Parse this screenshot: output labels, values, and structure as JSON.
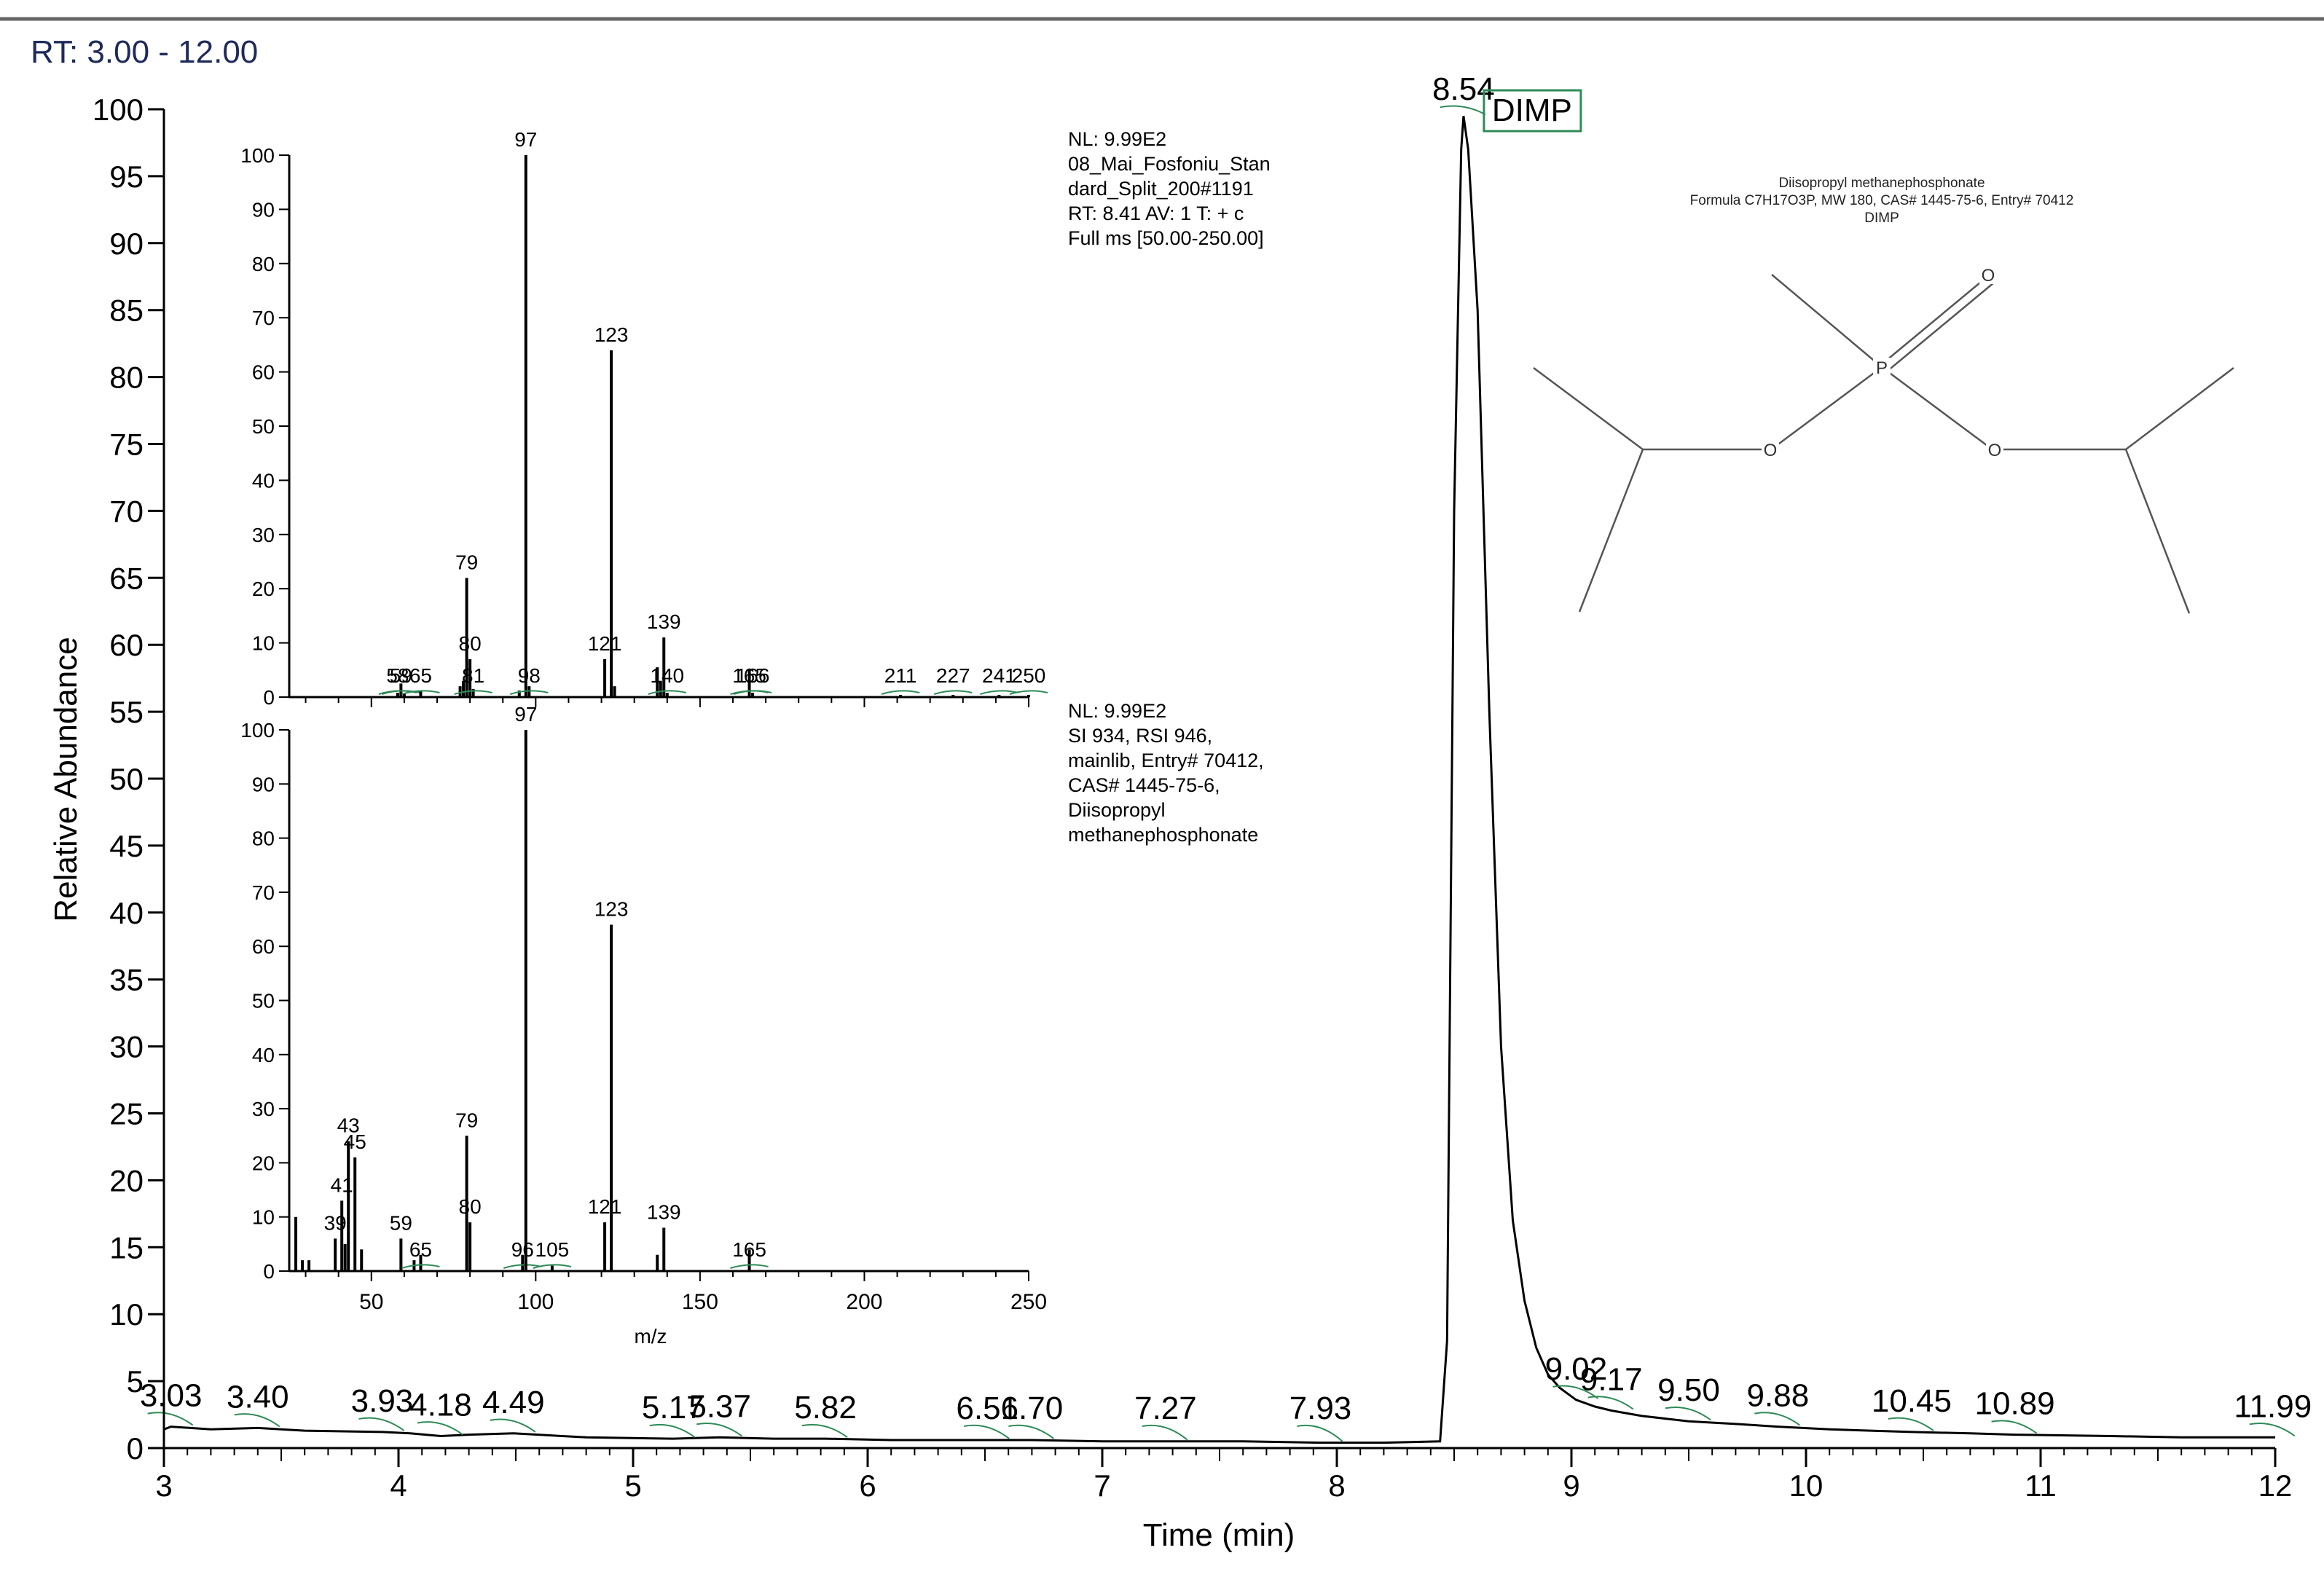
{
  "chart_data": [
    {
      "type": "line",
      "header": "RT: 3.00 - 12.00",
      "xlabel": "Time (min)",
      "ylabel": "Relative Abundance",
      "xlim": [
        3,
        12
      ],
      "ylim": [
        0,
        100
      ],
      "x_ticks": [
        "3",
        "4",
        "5",
        "6",
        "7",
        "8",
        "9",
        "10",
        "11",
        "12"
      ],
      "y_ticks": [
        "0",
        "5",
        "10",
        "15",
        "20",
        "25",
        "30",
        "35",
        "40",
        "45",
        "50",
        "55",
        "60",
        "65",
        "70",
        "75",
        "80",
        "85",
        "90",
        "95",
        "100"
      ],
      "series": [
        {
          "x": [
            3.0,
            3.03,
            3.2,
            3.4,
            3.6,
            3.93,
            4.05,
            4.18,
            4.3,
            4.49,
            4.8,
            5.17,
            5.37,
            5.6,
            5.82,
            6.1,
            6.51,
            6.7,
            7.0,
            7.27,
            7.6,
            7.93,
            8.2,
            8.44,
            8.47,
            8.5,
            8.53,
            8.54,
            8.56,
            8.6,
            8.65,
            8.7,
            8.75,
            8.8,
            8.85,
            8.9,
            8.95,
            9.02,
            9.1,
            9.17,
            9.3,
            9.5,
            9.7,
            9.88,
            10.1,
            10.45,
            10.7,
            10.89,
            11.3,
            11.6,
            11.99,
            12.0
          ],
          "y": [
            1.4,
            1.6,
            1.4,
            1.5,
            1.3,
            1.2,
            1.1,
            0.9,
            1.0,
            1.1,
            0.8,
            0.7,
            0.8,
            0.7,
            0.7,
            0.6,
            0.6,
            0.6,
            0.5,
            0.5,
            0.5,
            0.4,
            0.4,
            0.5,
            8.0,
            70.0,
            97.0,
            99.5,
            97.0,
            85.0,
            55.0,
            30.0,
            17.0,
            11.0,
            7.5,
            5.5,
            4.5,
            3.6,
            3.1,
            2.8,
            2.4,
            2.0,
            1.8,
            1.6,
            1.4,
            1.2,
            1.1,
            1.0,
            0.9,
            0.8,
            0.8,
            0.8
          ]
        }
      ],
      "peak_labels": [
        {
          "x": 3.03,
          "y": 1.6,
          "label": "3.03"
        },
        {
          "x": 3.4,
          "y": 1.5,
          "label": "3.40"
        },
        {
          "x": 3.93,
          "y": 1.2,
          "label": "3.93"
        },
        {
          "x": 4.18,
          "y": 0.9,
          "label": "4.18"
        },
        {
          "x": 4.49,
          "y": 1.1,
          "label": "4.49"
        },
        {
          "x": 5.17,
          "y": 0.7,
          "label": "5.17"
        },
        {
          "x": 5.37,
          "y": 0.8,
          "label": "5.37"
        },
        {
          "x": 5.82,
          "y": 0.7,
          "label": "5.82"
        },
        {
          "x": 6.51,
          "y": 0.6,
          "label": "6.51"
        },
        {
          "x": 6.7,
          "y": 0.6,
          "label": "6.70"
        },
        {
          "x": 7.27,
          "y": 0.5,
          "label": "7.27"
        },
        {
          "x": 7.93,
          "y": 0.4,
          "label": "7.93"
        },
        {
          "x": 8.54,
          "y": 99.5,
          "label": "8.54"
        },
        {
          "x": 9.02,
          "y": 3.6,
          "label": "9.02"
        },
        {
          "x": 9.17,
          "y": 2.8,
          "label": "9.17"
        },
        {
          "x": 9.5,
          "y": 2.0,
          "label": "9.50"
        },
        {
          "x": 9.88,
          "y": 1.6,
          "label": "9.88"
        },
        {
          "x": 10.45,
          "y": 1.2,
          "label": "10.45"
        },
        {
          "x": 10.89,
          "y": 1.0,
          "label": "10.89"
        },
        {
          "x": 11.99,
          "y": 0.8,
          "label": "11.99"
        }
      ],
      "compound_box": "DIMP",
      "compound_box_peak_x": 8.54
    },
    {
      "type": "bar",
      "name": "measured spectrum",
      "xlim": [
        25,
        250
      ],
      "ylim": [
        0,
        100
      ],
      "y_ticks": [
        "0",
        "10",
        "20",
        "30",
        "40",
        "50",
        "60",
        "70",
        "80",
        "90",
        "100"
      ],
      "x_ticks": [],
      "info": [
        "NL: 9.99E2",
        "08_Mai_Fosfoniu_Stan",
        "dard_Split_200#1191",
        "RT: 8.41  AV: 1 T: + c",
        "Full ms [50.00-250.00]"
      ],
      "peaks": [
        {
          "mz": 58,
          "value": 0.8,
          "label": "58"
        },
        {
          "mz": 59,
          "value": 2.5,
          "label": "59"
        },
        {
          "mz": 60,
          "value": 0.6,
          "label": ""
        },
        {
          "mz": 65,
          "value": 1.2,
          "label": "65"
        },
        {
          "mz": 77,
          "value": 2.0,
          "label": ""
        },
        {
          "mz": 78,
          "value": 3.0,
          "label": ""
        },
        {
          "mz": 79,
          "value": 22.0,
          "label": "79"
        },
        {
          "mz": 80,
          "value": 7.0,
          "label": "80"
        },
        {
          "mz": 81,
          "value": 1.5,
          "label": "81"
        },
        {
          "mz": 95,
          "value": 1.2,
          "label": ""
        },
        {
          "mz": 97,
          "value": 100.0,
          "label": "97"
        },
        {
          "mz": 98,
          "value": 2.0,
          "label": "98"
        },
        {
          "mz": 121,
          "value": 7.0,
          "label": "121"
        },
        {
          "mz": 123,
          "value": 64.0,
          "label": "123"
        },
        {
          "mz": 124,
          "value": 2.0,
          "label": ""
        },
        {
          "mz": 137,
          "value": 5.5,
          "label": ""
        },
        {
          "mz": 138,
          "value": 3.0,
          "label": ""
        },
        {
          "mz": 139,
          "value": 11.0,
          "label": "139"
        },
        {
          "mz": 140,
          "value": 0.8,
          "label": "140"
        },
        {
          "mz": 165,
          "value": 5.0,
          "label": "165"
        },
        {
          "mz": 166,
          "value": 0.8,
          "label": "166"
        },
        {
          "mz": 211,
          "value": 0.4,
          "label": "211"
        },
        {
          "mz": 227,
          "value": 0.4,
          "label": "227"
        },
        {
          "mz": 241,
          "value": 0.4,
          "label": "241"
        },
        {
          "mz": 250,
          "value": 0.4,
          "label": "250"
        }
      ]
    },
    {
      "type": "bar",
      "name": "library spectrum",
      "xlim": [
        25,
        250
      ],
      "ylim": [
        0,
        100
      ],
      "xlabel": "m/z",
      "y_ticks": [
        "0",
        "10",
        "20",
        "30",
        "40",
        "50",
        "60",
        "70",
        "80",
        "90",
        "100"
      ],
      "x_ticks": [
        "50",
        "100",
        "150",
        "200",
        "250"
      ],
      "info": [
        "NL: 9.99E2",
        "SI 934, RSI 946,",
        "mainlib, Entry# 70412,",
        "CAS# 1445-75-6,",
        "Diisopropyl",
        "methanephosphonate"
      ],
      "peaks": [
        {
          "mz": 27,
          "value": 10.0,
          "label": ""
        },
        {
          "mz": 29,
          "value": 2.0,
          "label": ""
        },
        {
          "mz": 31,
          "value": 2.0,
          "label": ""
        },
        {
          "mz": 39,
          "value": 6.0,
          "label": "39"
        },
        {
          "mz": 41,
          "value": 13.0,
          "label": "41"
        },
        {
          "mz": 42,
          "value": 5.0,
          "label": ""
        },
        {
          "mz": 43,
          "value": 24.0,
          "label": "43"
        },
        {
          "mz": 45,
          "value": 21.0,
          "label": "45"
        },
        {
          "mz": 47,
          "value": 4.0,
          "label": ""
        },
        {
          "mz": 59,
          "value": 6.0,
          "label": "59"
        },
        {
          "mz": 63,
          "value": 2.0,
          "label": ""
        },
        {
          "mz": 65,
          "value": 3.0,
          "label": "65"
        },
        {
          "mz": 79,
          "value": 25.0,
          "label": "79"
        },
        {
          "mz": 80,
          "value": 9.0,
          "label": "80"
        },
        {
          "mz": 96,
          "value": 3.0,
          "label": "96"
        },
        {
          "mz": 97,
          "value": 100.0,
          "label": "97"
        },
        {
          "mz": 105,
          "value": 1.0,
          "label": "105"
        },
        {
          "mz": 121,
          "value": 9.0,
          "label": "121"
        },
        {
          "mz": 123,
          "value": 64.0,
          "label": "123"
        },
        {
          "mz": 137,
          "value": 3.0,
          "label": ""
        },
        {
          "mz": 139,
          "value": 8.0,
          "label": "139"
        },
        {
          "mz": 165,
          "value": 4.0,
          "label": "165"
        }
      ]
    }
  ],
  "structure": {
    "title_lines": [
      "Diisopropyl methanephosphonate",
      "Formula C7H17O3P, MW 180, CAS# 1445-75-6, Entry# 70412",
      "DIMP"
    ],
    "atoms": [
      "O",
      "P",
      "O",
      "O"
    ]
  }
}
